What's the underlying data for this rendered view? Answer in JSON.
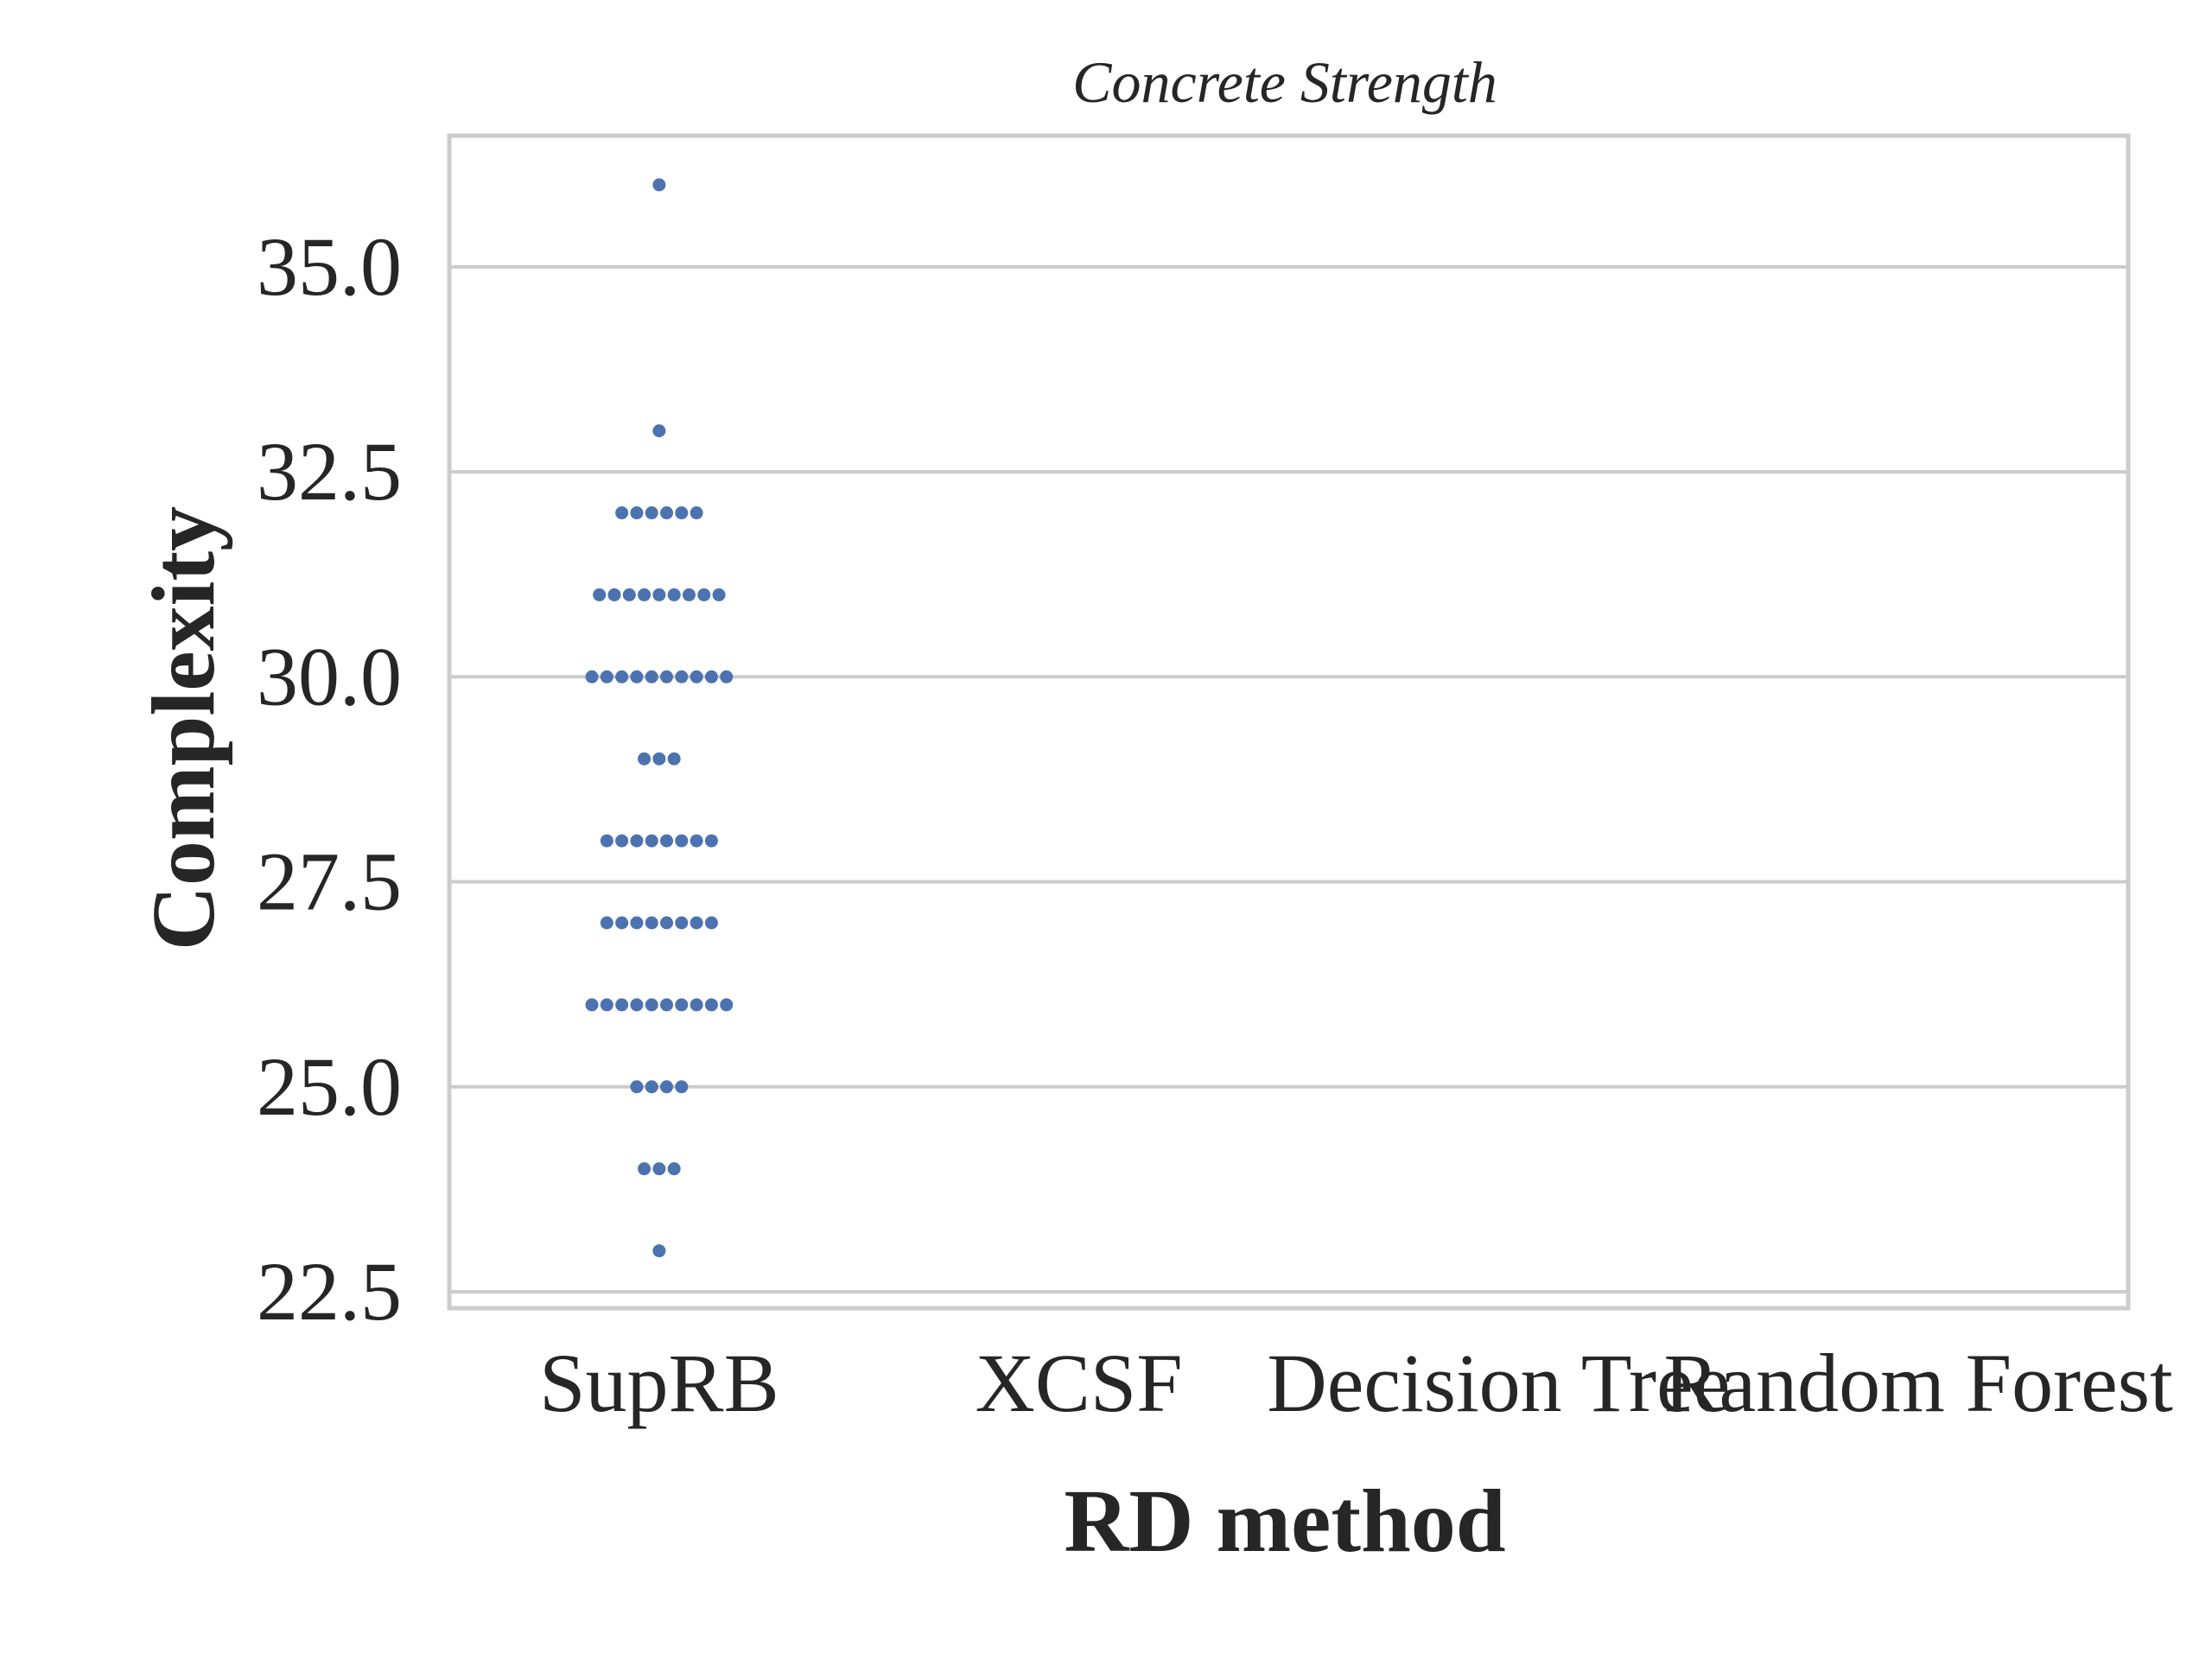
{
  "chart_data": {
    "type": "scatter",
    "subtype": "swarm",
    "title": "Concrete Strength",
    "xlabel": "RD method",
    "ylabel": "Complexity",
    "categories": [
      "SupRB",
      "XCSF",
      "Decision Tree",
      "Random Forest"
    ],
    "ylim": [
      22.3,
      36.6
    ],
    "yticks": [
      "22.5",
      "25.0",
      "27.5",
      "30.0",
      "32.5",
      "35.0"
    ],
    "grid": true,
    "legend": "none",
    "point_color": "#4c72b0",
    "series": [
      {
        "category": "SupRB",
        "points": [
          {
            "value": 23,
            "count": 1
          },
          {
            "value": 24,
            "count": 3
          },
          {
            "value": 25,
            "count": 4
          },
          {
            "value": 26,
            "count": 10
          },
          {
            "value": 27,
            "count": 8
          },
          {
            "value": 28,
            "count": 8
          },
          {
            "value": 29,
            "count": 3
          },
          {
            "value": 30,
            "count": 10
          },
          {
            "value": 31,
            "count": 9
          },
          {
            "value": 32,
            "count": 6
          },
          {
            "value": 33,
            "count": 1
          },
          {
            "value": 36,
            "count": 1
          }
        ]
      }
    ]
  }
}
